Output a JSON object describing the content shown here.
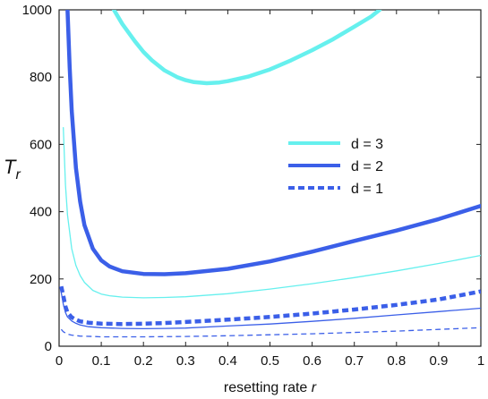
{
  "chart_data": {
    "type": "line",
    "title": "",
    "xlabel": "resetting rate ",
    "xlabel_var": "r",
    "ylabel_main": "T",
    "ylabel_sub": "r",
    "xlim": [
      0,
      1
    ],
    "ylim": [
      0,
      1000
    ],
    "x_ticks": [
      0,
      0.1,
      0.2,
      0.3,
      0.4,
      0.5,
      0.6,
      0.7,
      0.8,
      0.9,
      1
    ],
    "x_tick_labels": [
      "0",
      "0.1",
      "0.2",
      "0.3",
      "0.4",
      "0.5",
      "0.6",
      "0.7",
      "0.8",
      "0.9",
      "1"
    ],
    "y_ticks": [
      0,
      200,
      400,
      600,
      800,
      1000
    ],
    "y_tick_labels": [
      "0",
      "200",
      "400",
      "600",
      "800",
      "1000"
    ],
    "grid": false,
    "legend_position": "center-right",
    "legend": [
      {
        "label": "d = 3",
        "color": "#66f0ee",
        "style": "solid"
      },
      {
        "label": "d = 2",
        "color": "#3b5fe8",
        "style": "solid"
      },
      {
        "label": "d = 1",
        "color": "#3b5fe8",
        "style": "dashed"
      }
    ],
    "series": [
      {
        "group": "d = 3",
        "variant": "thick",
        "color": "#66f0ee",
        "dash": "",
        "x": [
          0.13,
          0.15,
          0.18,
          0.2,
          0.22,
          0.25,
          0.28,
          0.3,
          0.32,
          0.35,
          0.38,
          0.4,
          0.45,
          0.5,
          0.55,
          0.6,
          0.65,
          0.7,
          0.74,
          0.76
        ],
        "y": [
          1000,
          958,
          906,
          875,
          850,
          820,
          800,
          791,
          785,
          782,
          784,
          788,
          802,
          823,
          850,
          880,
          913,
          950,
          980,
          1000
        ]
      },
      {
        "group": "d = 3",
        "variant": "thin",
        "color": "#66f0ee",
        "dash": "",
        "x": [
          0.01,
          0.015,
          0.02,
          0.03,
          0.04,
          0.05,
          0.06,
          0.08,
          0.1,
          0.12,
          0.15,
          0.2,
          0.25,
          0.3,
          0.4,
          0.5,
          0.6,
          0.7,
          0.8,
          0.9,
          1.0
        ],
        "y": [
          650,
          480,
          390,
          290,
          240,
          210,
          190,
          166,
          155,
          150,
          146,
          144,
          145,
          147,
          156,
          170,
          186,
          204,
          224,
          246,
          270
        ]
      },
      {
        "group": "d = 2",
        "variant": "thick",
        "color": "#3b5fe8",
        "dash": "",
        "x": [
          0.02,
          0.025,
          0.03,
          0.04,
          0.05,
          0.06,
          0.08,
          0.1,
          0.12,
          0.15,
          0.2,
          0.25,
          0.3,
          0.4,
          0.5,
          0.6,
          0.7,
          0.8,
          0.9,
          1.0
        ],
        "y": [
          1000,
          830,
          700,
          530,
          430,
          360,
          290,
          255,
          237,
          223,
          215,
          214,
          217,
          230,
          252,
          281,
          313,
          344,
          378,
          417
        ]
      },
      {
        "group": "d = 2",
        "variant": "thin",
        "color": "#3b5fe8",
        "dash": "",
        "x": [
          0.005,
          0.01,
          0.015,
          0.02,
          0.03,
          0.04,
          0.05,
          0.07,
          0.1,
          0.15,
          0.2,
          0.25,
          0.3,
          0.4,
          0.5,
          0.6,
          0.7,
          0.8,
          0.9,
          1.0
        ],
        "y": [
          160,
          125,
          100,
          87,
          75,
          68,
          63,
          58,
          55,
          53,
          52,
          53,
          54,
          60,
          66,
          74,
          83,
          93,
          103,
          113
        ]
      },
      {
        "group": "d = 1",
        "variant": "thick",
        "color": "#3b5fe8",
        "dash": "6 4",
        "x": [
          0.005,
          0.01,
          0.015,
          0.02,
          0.03,
          0.04,
          0.05,
          0.07,
          0.1,
          0.15,
          0.2,
          0.25,
          0.3,
          0.4,
          0.5,
          0.6,
          0.7,
          0.8,
          0.9,
          1.0
        ],
        "y": [
          178,
          150,
          118,
          100,
          86,
          79,
          74,
          70,
          67,
          66,
          67,
          69,
          72,
          79,
          87,
          97,
          109,
          123,
          139,
          163
        ]
      },
      {
        "group": "d = 1",
        "variant": "thin",
        "color": "#3b5fe8",
        "dash": "5 4",
        "x": [
          0.005,
          0.01,
          0.02,
          0.03,
          0.05,
          0.08,
          0.1,
          0.15,
          0.2,
          0.3,
          0.4,
          0.5,
          0.6,
          0.7,
          0.8,
          0.9,
          1.0
        ],
        "y": [
          50,
          43,
          36,
          33,
          30,
          29,
          28,
          28,
          28,
          29,
          31,
          34,
          37,
          41,
          45,
          50,
          55
        ]
      }
    ]
  }
}
